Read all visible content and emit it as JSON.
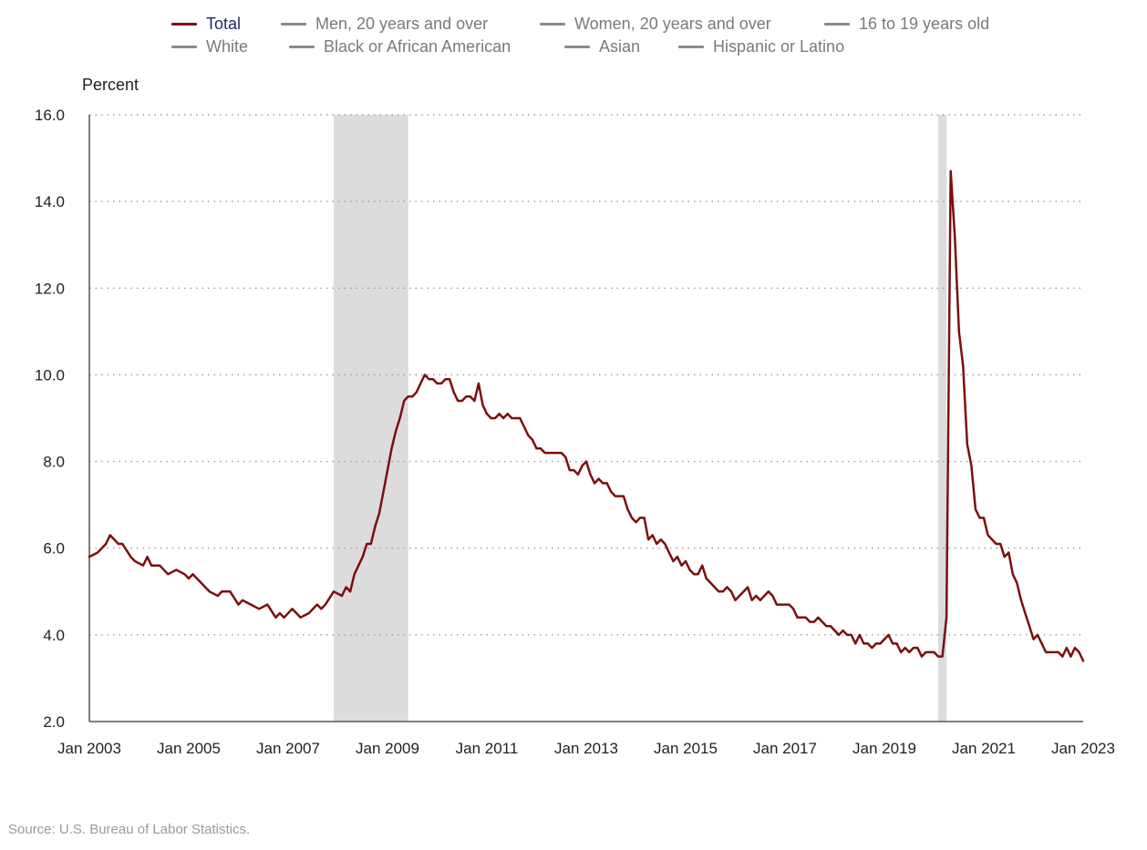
{
  "legend": [
    {
      "label": "Total",
      "color": "#7a0f0f",
      "active": true
    },
    {
      "label": "Men, 20 years and over",
      "color": "#8a8a8a",
      "active": false
    },
    {
      "label": "Women, 20 years and over",
      "color": "#8a8a8a",
      "active": false
    },
    {
      "label": "16 to 19 years old",
      "color": "#8a8a8a",
      "active": false
    },
    {
      "label": "White",
      "color": "#8a8a8a",
      "active": false
    },
    {
      "label": "Black or African American",
      "color": "#8a8a8a",
      "active": false
    },
    {
      "label": "Asian",
      "color": "#8a8a8a",
      "active": false
    },
    {
      "label": "Hispanic or Latino",
      "color": "#8a8a8a",
      "active": false
    }
  ],
  "source": "Source: U.S. Bureau of Labor Statistics.",
  "chart_data": {
    "type": "line",
    "ylabel": "Percent",
    "ylim": [
      2.0,
      16.0
    ],
    "yticks": [
      "2.0",
      "4.0",
      "6.0",
      "8.0",
      "10.0",
      "12.0",
      "14.0",
      "16.0"
    ],
    "xlim": [
      "2003-01",
      "2023-01"
    ],
    "xticks": [
      "Jan 2003",
      "Jan 2005",
      "Jan 2007",
      "Jan 2009",
      "Jan 2011",
      "Jan 2013",
      "Jan 2015",
      "Jan 2017",
      "Jan 2019",
      "Jan 2021",
      "Jan 2023"
    ],
    "grid": true,
    "recessions": [
      {
        "start": "2007-12",
        "end": "2009-06"
      },
      {
        "start": "2020-02",
        "end": "2020-04"
      }
    ],
    "series": [
      {
        "name": "Total",
        "color": "#7a0f0f",
        "points": [
          [
            "2003-01",
            5.8
          ],
          [
            "2003-03",
            5.9
          ],
          [
            "2003-05",
            6.1
          ],
          [
            "2003-06",
            6.3
          ],
          [
            "2003-08",
            6.1
          ],
          [
            "2003-09",
            6.1
          ],
          [
            "2003-11",
            5.8
          ],
          [
            "2003-12",
            5.7
          ],
          [
            "2004-02",
            5.6
          ],
          [
            "2004-03",
            5.8
          ],
          [
            "2004-04",
            5.6
          ],
          [
            "2004-06",
            5.6
          ],
          [
            "2004-08",
            5.4
          ],
          [
            "2004-10",
            5.5
          ],
          [
            "2004-12",
            5.4
          ],
          [
            "2005-01",
            5.3
          ],
          [
            "2005-02",
            5.4
          ],
          [
            "2005-04",
            5.2
          ],
          [
            "2005-06",
            5.0
          ],
          [
            "2005-08",
            4.9
          ],
          [
            "2005-09",
            5.0
          ],
          [
            "2005-11",
            5.0
          ],
          [
            "2006-01",
            4.7
          ],
          [
            "2006-02",
            4.8
          ],
          [
            "2006-04",
            4.7
          ],
          [
            "2006-06",
            4.6
          ],
          [
            "2006-08",
            4.7
          ],
          [
            "2006-10",
            4.4
          ],
          [
            "2006-11",
            4.5
          ],
          [
            "2006-12",
            4.4
          ],
          [
            "2007-02",
            4.6
          ],
          [
            "2007-04",
            4.4
          ],
          [
            "2007-06",
            4.5
          ],
          [
            "2007-08",
            4.7
          ],
          [
            "2007-09",
            4.6
          ],
          [
            "2007-10",
            4.7
          ],
          [
            "2007-12",
            5.0
          ],
          [
            "2008-02",
            4.9
          ],
          [
            "2008-03",
            5.1
          ],
          [
            "2008-04",
            5.0
          ],
          [
            "2008-05",
            5.4
          ],
          [
            "2008-06",
            5.6
          ],
          [
            "2008-07",
            5.8
          ],
          [
            "2008-08",
            6.1
          ],
          [
            "2008-09",
            6.1
          ],
          [
            "2008-10",
            6.5
          ],
          [
            "2008-11",
            6.8
          ],
          [
            "2008-12",
            7.3
          ],
          [
            "2009-01",
            7.8
          ],
          [
            "2009-02",
            8.3
          ],
          [
            "2009-03",
            8.7
          ],
          [
            "2009-04",
            9.0
          ],
          [
            "2009-05",
            9.4
          ],
          [
            "2009-06",
            9.5
          ],
          [
            "2009-07",
            9.5
          ],
          [
            "2009-08",
            9.6
          ],
          [
            "2009-09",
            9.8
          ],
          [
            "2009-10",
            10.0
          ],
          [
            "2009-11",
            9.9
          ],
          [
            "2009-12",
            9.9
          ],
          [
            "2010-01",
            9.8
          ],
          [
            "2010-02",
            9.8
          ],
          [
            "2010-03",
            9.9
          ],
          [
            "2010-04",
            9.9
          ],
          [
            "2010-05",
            9.6
          ],
          [
            "2010-06",
            9.4
          ],
          [
            "2010-07",
            9.4
          ],
          [
            "2010-08",
            9.5
          ],
          [
            "2010-09",
            9.5
          ],
          [
            "2010-10",
            9.4
          ],
          [
            "2010-11",
            9.8
          ],
          [
            "2010-12",
            9.3
          ],
          [
            "2011-01",
            9.1
          ],
          [
            "2011-02",
            9.0
          ],
          [
            "2011-03",
            9.0
          ],
          [
            "2011-04",
            9.1
          ],
          [
            "2011-05",
            9.0
          ],
          [
            "2011-06",
            9.1
          ],
          [
            "2011-07",
            9.0
          ],
          [
            "2011-08",
            9.0
          ],
          [
            "2011-09",
            9.0
          ],
          [
            "2011-10",
            8.8
          ],
          [
            "2011-11",
            8.6
          ],
          [
            "2011-12",
            8.5
          ],
          [
            "2012-01",
            8.3
          ],
          [
            "2012-02",
            8.3
          ],
          [
            "2012-03",
            8.2
          ],
          [
            "2012-05",
            8.2
          ],
          [
            "2012-07",
            8.2
          ],
          [
            "2012-08",
            8.1
          ],
          [
            "2012-09",
            7.8
          ],
          [
            "2012-10",
            7.8
          ],
          [
            "2012-11",
            7.7
          ],
          [
            "2012-12",
            7.9
          ],
          [
            "2013-01",
            8.0
          ],
          [
            "2013-02",
            7.7
          ],
          [
            "2013-03",
            7.5
          ],
          [
            "2013-04",
            7.6
          ],
          [
            "2013-05",
            7.5
          ],
          [
            "2013-06",
            7.5
          ],
          [
            "2013-07",
            7.3
          ],
          [
            "2013-08",
            7.2
          ],
          [
            "2013-10",
            7.2
          ],
          [
            "2013-11",
            6.9
          ],
          [
            "2013-12",
            6.7
          ],
          [
            "2014-01",
            6.6
          ],
          [
            "2014-02",
            6.7
          ],
          [
            "2014-03",
            6.7
          ],
          [
            "2014-04",
            6.2
          ],
          [
            "2014-05",
            6.3
          ],
          [
            "2014-06",
            6.1
          ],
          [
            "2014-07",
            6.2
          ],
          [
            "2014-08",
            6.1
          ],
          [
            "2014-09",
            5.9
          ],
          [
            "2014-10",
            5.7
          ],
          [
            "2014-11",
            5.8
          ],
          [
            "2014-12",
            5.6
          ],
          [
            "2015-01",
            5.7
          ],
          [
            "2015-02",
            5.5
          ],
          [
            "2015-03",
            5.4
          ],
          [
            "2015-04",
            5.4
          ],
          [
            "2015-05",
            5.6
          ],
          [
            "2015-06",
            5.3
          ],
          [
            "2015-07",
            5.2
          ],
          [
            "2015-08",
            5.1
          ],
          [
            "2015-09",
            5.0
          ],
          [
            "2015-10",
            5.0
          ],
          [
            "2015-11",
            5.1
          ],
          [
            "2015-12",
            5.0
          ],
          [
            "2016-01",
            4.8
          ],
          [
            "2016-02",
            4.9
          ],
          [
            "2016-03",
            5.0
          ],
          [
            "2016-04",
            5.1
          ],
          [
            "2016-05",
            4.8
          ],
          [
            "2016-06",
            4.9
          ],
          [
            "2016-07",
            4.8
          ],
          [
            "2016-08",
            4.9
          ],
          [
            "2016-09",
            5.0
          ],
          [
            "2016-10",
            4.9
          ],
          [
            "2016-11",
            4.7
          ],
          [
            "2016-12",
            4.7
          ],
          [
            "2017-02",
            4.7
          ],
          [
            "2017-03",
            4.6
          ],
          [
            "2017-04",
            4.4
          ],
          [
            "2017-06",
            4.4
          ],
          [
            "2017-07",
            4.3
          ],
          [
            "2017-08",
            4.3
          ],
          [
            "2017-09",
            4.4
          ],
          [
            "2017-10",
            4.3
          ],
          [
            "2017-11",
            4.2
          ],
          [
            "2017-12",
            4.2
          ],
          [
            "2018-01",
            4.1
          ],
          [
            "2018-02",
            4.0
          ],
          [
            "2018-03",
            4.1
          ],
          [
            "2018-04",
            4.0
          ],
          [
            "2018-05",
            4.0
          ],
          [
            "2018-06",
            3.8
          ],
          [
            "2018-07",
            4.0
          ],
          [
            "2018-08",
            3.8
          ],
          [
            "2018-09",
            3.8
          ],
          [
            "2018-10",
            3.7
          ],
          [
            "2018-11",
            3.8
          ],
          [
            "2018-12",
            3.8
          ],
          [
            "2019-01",
            3.9
          ],
          [
            "2019-02",
            4.0
          ],
          [
            "2019-03",
            3.8
          ],
          [
            "2019-04",
            3.8
          ],
          [
            "2019-05",
            3.6
          ],
          [
            "2019-06",
            3.7
          ],
          [
            "2019-07",
            3.6
          ],
          [
            "2019-08",
            3.7
          ],
          [
            "2019-09",
            3.7
          ],
          [
            "2019-10",
            3.5
          ],
          [
            "2019-11",
            3.6
          ],
          [
            "2019-12",
            3.6
          ],
          [
            "2020-01",
            3.6
          ],
          [
            "2020-02",
            3.5
          ],
          [
            "2020-03",
            3.5
          ],
          [
            "2020-04",
            4.4
          ],
          [
            "2020-05",
            14.7
          ],
          [
            "2020-06",
            13.2
          ],
          [
            "2020-07",
            11.0
          ],
          [
            "2020-08",
            10.2
          ],
          [
            "2020-09",
            8.4
          ],
          [
            "2020-10",
            7.9
          ],
          [
            "2020-11",
            6.9
          ],
          [
            "2020-12",
            6.7
          ],
          [
            "2021-01",
            6.7
          ],
          [
            "2021-02",
            6.3
          ],
          [
            "2021-03",
            6.2
          ],
          [
            "2021-04",
            6.1
          ],
          [
            "2021-05",
            6.1
          ],
          [
            "2021-06",
            5.8
          ],
          [
            "2021-07",
            5.9
          ],
          [
            "2021-08",
            5.4
          ],
          [
            "2021-09",
            5.2
          ],
          [
            "2021-10",
            4.8
          ],
          [
            "2021-11",
            4.5
          ],
          [
            "2021-12",
            4.2
          ],
          [
            "2022-01",
            3.9
          ],
          [
            "2022-02",
            4.0
          ],
          [
            "2022-03",
            3.8
          ],
          [
            "2022-04",
            3.6
          ],
          [
            "2022-05",
            3.6
          ],
          [
            "2022-06",
            3.6
          ],
          [
            "2022-07",
            3.6
          ],
          [
            "2022-08",
            3.5
          ],
          [
            "2022-09",
            3.7
          ],
          [
            "2022-10",
            3.5
          ],
          [
            "2022-11",
            3.7
          ],
          [
            "2022-12",
            3.6
          ],
          [
            "2023-01",
            3.4
          ]
        ]
      }
    ]
  }
}
